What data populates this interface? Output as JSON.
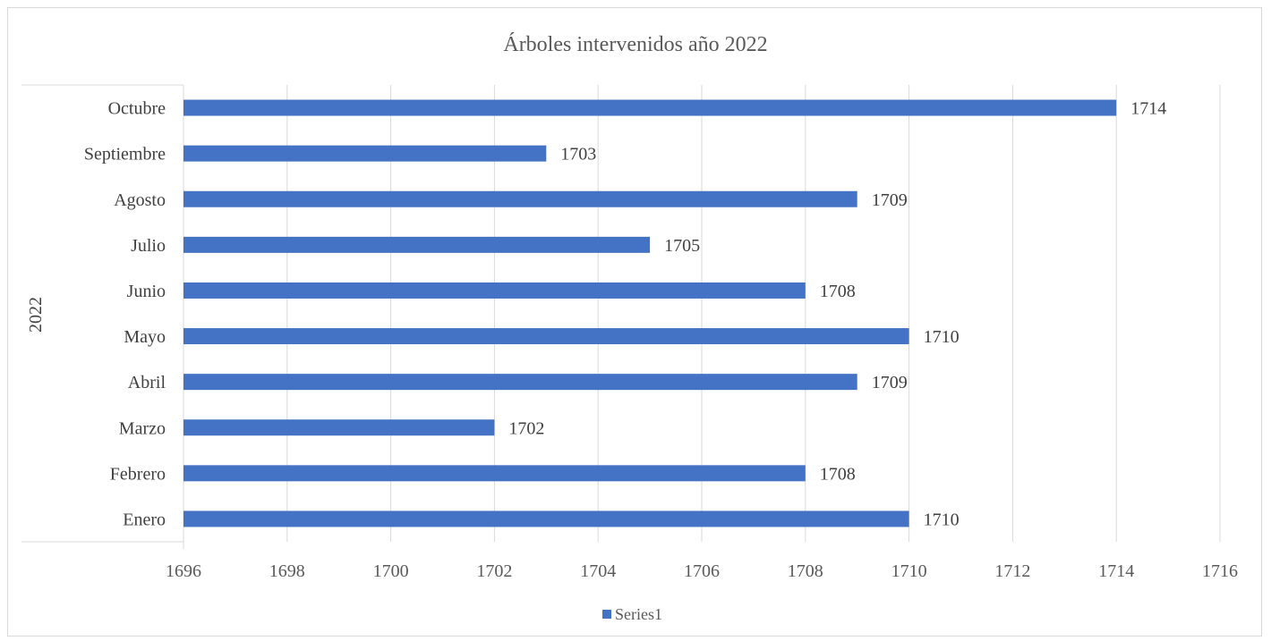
{
  "chart_data": {
    "type": "bar",
    "orientation": "horizontal",
    "title": "Árboles intervenidos año 2022",
    "group_label": "2022",
    "categories": [
      "Enero",
      "Febrero",
      "Marzo",
      "Abril",
      "Mayo",
      "Junio",
      "Julio",
      "Agosto",
      "Septiembre",
      "Octubre"
    ],
    "series": [
      {
        "name": "Series1",
        "values": [
          1710,
          1708,
          1702,
          1709,
          1710,
          1708,
          1705,
          1709,
          1703,
          1714
        ],
        "color": "#4472c4"
      }
    ],
    "xlim": [
      1696,
      1716
    ],
    "xticks": [
      1696,
      1698,
      1700,
      1702,
      1704,
      1706,
      1708,
      1710,
      1712,
      1714,
      1716
    ],
    "grid": true,
    "data_labels": true,
    "legend_position": "bottom"
  }
}
